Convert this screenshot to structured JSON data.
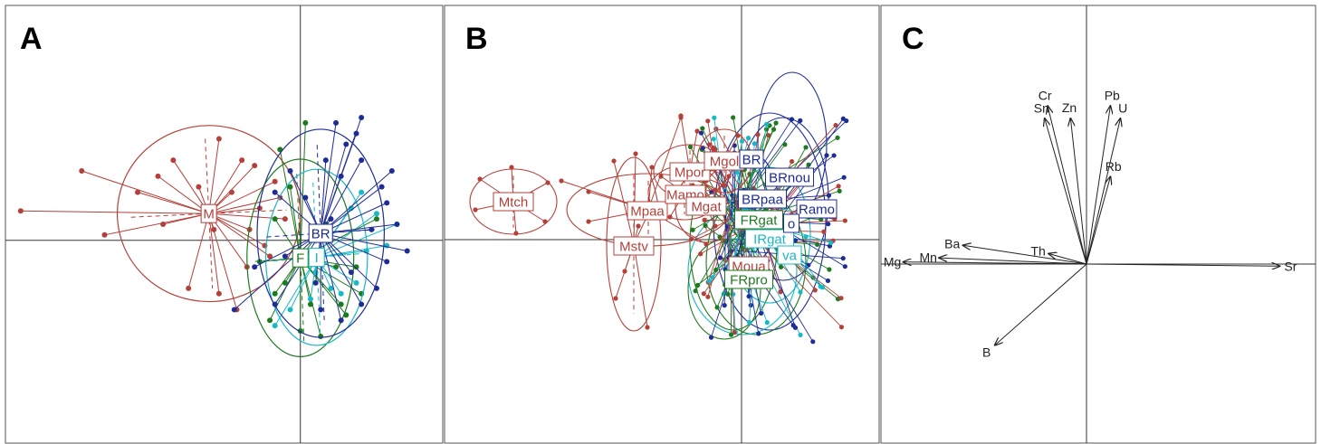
{
  "figure": {
    "colors": {
      "M": "#b4403a",
      "F": "#1e7a1e",
      "I": "#18b8c8",
      "B": "#1e2c96"
    }
  },
  "panels": [
    {
      "key": "A",
      "label": "A"
    },
    {
      "key": "B",
      "label": "B"
    },
    {
      "key": "C",
      "label": "C"
    }
  ],
  "chart_data": [
    {
      "panel": "A",
      "type": "scatter",
      "title": "",
      "grid": false,
      "xlim": [
        -5.8,
        2.8
      ],
      "ylim": [
        -3.8,
        4.4
      ],
      "groups": [
        {
          "name": "M",
          "label": "M",
          "color": "#b4403a",
          "centroid": [
            -1.8,
            0.5
          ],
          "points": [
            [
              -5.5,
              0.55
            ],
            [
              -4.3,
              1.3
            ],
            [
              -3.85,
              0.1
            ],
            [
              -3.2,
              0.9
            ],
            [
              -2.5,
              1.5
            ],
            [
              -1.6,
              1.9
            ],
            [
              -2.7,
              0.3
            ],
            [
              -2.2,
              -0.9
            ],
            [
              -1.6,
              -1.0
            ],
            [
              -1.25,
              -1.3
            ],
            [
              -1.0,
              0.2
            ],
            [
              -0.8,
              0.6
            ],
            [
              -0.5,
              1.1
            ],
            [
              -0.3,
              0.4
            ],
            [
              -1.05,
              -0.5
            ],
            [
              -1.35,
              0.9
            ],
            [
              -0.6,
              -0.3
            ],
            [
              -2.0,
              1.0
            ],
            [
              -1.7,
              0.2
            ],
            [
              -0.9,
              1.4
            ],
            [
              -0.4,
              0.8
            ],
            [
              -2.8,
              1.2
            ],
            [
              -1.15,
              1.5
            ],
            [
              -0.7,
              -0.1
            ]
          ],
          "ellipse": {
            "rx": 1.8,
            "ry": 1.65
          }
        },
        {
          "name": "F",
          "label": "F",
          "color": "#1e7a1e",
          "centroid": [
            0.0,
            -0.33
          ],
          "points": [
            [
              0.1,
              2.2
            ],
            [
              -0.4,
              1.7
            ],
            [
              -0.2,
              1.0
            ],
            [
              -0.5,
              0.4
            ],
            [
              -0.8,
              -0.4
            ],
            [
              -0.5,
              -1.0
            ],
            [
              -0.6,
              -1.5
            ],
            [
              0.0,
              -1.7
            ],
            [
              0.4,
              -1.8
            ],
            [
              0.9,
              -1.4
            ],
            [
              1.1,
              -0.5
            ],
            [
              1.5,
              0.4
            ],
            [
              0.8,
              -1.2
            ],
            [
              0.2,
              -1.2
            ],
            [
              -0.3,
              -0.8
            ],
            [
              0.5,
              0.3
            ],
            [
              0.7,
              -0.5
            ],
            [
              1.2,
              -1.0
            ]
          ],
          "ellipse": {
            "rx": 1.05,
            "ry": 1.85
          }
        },
        {
          "name": "I",
          "label": "I",
          "color": "#18b8c8",
          "centroid": [
            0.32,
            -0.32
          ],
          "points": [
            [
              1.2,
              0.9
            ],
            [
              1.5,
              0.5
            ],
            [
              1.7,
              -0.1
            ],
            [
              1.9,
              0.3
            ],
            [
              1.1,
              -0.8
            ],
            [
              0.6,
              -0.9
            ],
            [
              0.2,
              -1.1
            ],
            [
              -0.2,
              -1.3
            ],
            [
              -0.5,
              -1.6
            ],
            [
              0.8,
              -1.0
            ],
            [
              1.3,
              -0.2
            ],
            [
              0.3,
              -0.6
            ],
            [
              -0.1,
              -0.4
            ],
            [
              1.0,
              0.6
            ]
          ],
          "ellipse": {
            "rx": 1.0,
            "ry": 1.65
          }
        },
        {
          "name": "B",
          "label": "BR",
          "color": "#1e2c96",
          "centroid": [
            0.4,
            0.13
          ],
          "points": [
            [
              1.2,
              2.3
            ],
            [
              1.1,
              2.0
            ],
            [
              0.9,
              1.8
            ],
            [
              1.2,
              1.5
            ],
            [
              0.8,
              1.2
            ],
            [
              1.6,
              1.0
            ],
            [
              1.9,
              0.3
            ],
            [
              2.1,
              -0.2
            ],
            [
              1.7,
              -0.4
            ],
            [
              1.5,
              -0.9
            ],
            [
              1.2,
              -1.2
            ],
            [
              0.8,
              -1.5
            ],
            [
              0.4,
              -1.3
            ],
            [
              -0.5,
              -1.2
            ],
            [
              -1.3,
              -1.3
            ],
            [
              -0.9,
              -0.5
            ],
            [
              -0.5,
              0.9
            ],
            [
              -0.2,
              1.3
            ],
            [
              0.5,
              1.5
            ],
            [
              1.7,
              0.7
            ],
            [
              1.0,
              -0.6
            ],
            [
              0.6,
              0.4
            ],
            [
              0.1,
              0.8
            ],
            [
              -0.3,
              -0.3
            ],
            [
              1.4,
              0.2
            ],
            [
              0.3,
              -0.8
            ],
            [
              1.8,
              1.3
            ],
            [
              0.7,
              2.2
            ]
          ],
          "ellipse": {
            "rx": 1.25,
            "ry": 1.95
          }
        }
      ]
    },
    {
      "panel": "B",
      "type": "scatter",
      "title": "",
      "grid": false,
      "labels": [
        "Mtch",
        "Mstv",
        "Mpaa",
        "Mamo",
        "Mpor",
        "Mgol",
        "Mgat",
        "Moua",
        "BR",
        "BRnou",
        "BRpaa",
        "Ramo",
        "FRgat",
        "IRgat",
        "FRpro",
        "o",
        "va"
      ]
    },
    {
      "panel": "C",
      "type": "biplot",
      "title": "",
      "grid": false,
      "xlim": [
        -1.0,
        1.0
      ],
      "ylim": [
        -1.0,
        1.0
      ],
      "variables": [
        {
          "name": "Cr",
          "x": -0.195,
          "y": 0.76
        },
        {
          "name": "Sn",
          "x": -0.21,
          "y": 0.7
        },
        {
          "name": "Zn",
          "x": -0.08,
          "y": 0.7
        },
        {
          "name": "Pb",
          "x": 0.12,
          "y": 0.76
        },
        {
          "name": "U",
          "x": 0.17,
          "y": 0.7
        },
        {
          "name": "Rb",
          "x": 0.12,
          "y": 0.42
        },
        {
          "name": "Ba",
          "x": -0.62,
          "y": 0.09
        },
        {
          "name": "Th",
          "x": -0.19,
          "y": 0.05
        },
        {
          "name": "Mn",
          "x": -0.74,
          "y": 0.03
        },
        {
          "name": "Mg",
          "x": -0.92,
          "y": 0.01
        },
        {
          "name": "Sr",
          "x": 0.97,
          "y": -0.01
        },
        {
          "name": "B",
          "x": -0.46,
          "y": -0.39
        }
      ]
    }
  ]
}
